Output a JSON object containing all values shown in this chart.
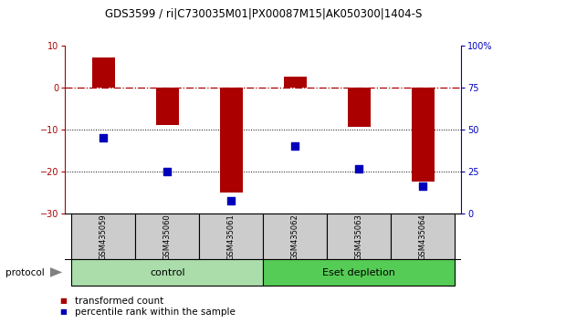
{
  "title": "GDS3599 / ri|C730035M01|PX00087M15|AK050300|1404-S",
  "samples": [
    "GSM435059",
    "GSM435060",
    "GSM435061",
    "GSM435062",
    "GSM435063",
    "GSM435064"
  ],
  "red_bars": [
    7.0,
    -9.0,
    -25.0,
    2.5,
    -9.5,
    -22.5
  ],
  "blue_y": [
    -12.0,
    -20.0,
    -27.0,
    -14.0,
    -19.5,
    -23.5
  ],
  "ylim_left": [
    -30,
    10
  ],
  "ylim_right": [
    0,
    100
  ],
  "yticks_left": [
    -30,
    -20,
    -10,
    0,
    10
  ],
  "yticks_right": [
    0,
    25,
    50,
    75,
    100
  ],
  "ytick_labels_right": [
    "0",
    "25",
    "50",
    "75",
    "100%"
  ],
  "dotted_lines": [
    -10,
    -20
  ],
  "red_color": "#aa0000",
  "blue_color": "#0000bb",
  "control_color": "#aaddaa",
  "eset_color": "#55cc55",
  "bar_width": 0.35,
  "blue_square_size": 30,
  "title_fontsize": 8.5,
  "tick_fontsize": 7,
  "sample_fontsize": 6,
  "group_fontsize": 8,
  "legend_fontsize": 7.5
}
